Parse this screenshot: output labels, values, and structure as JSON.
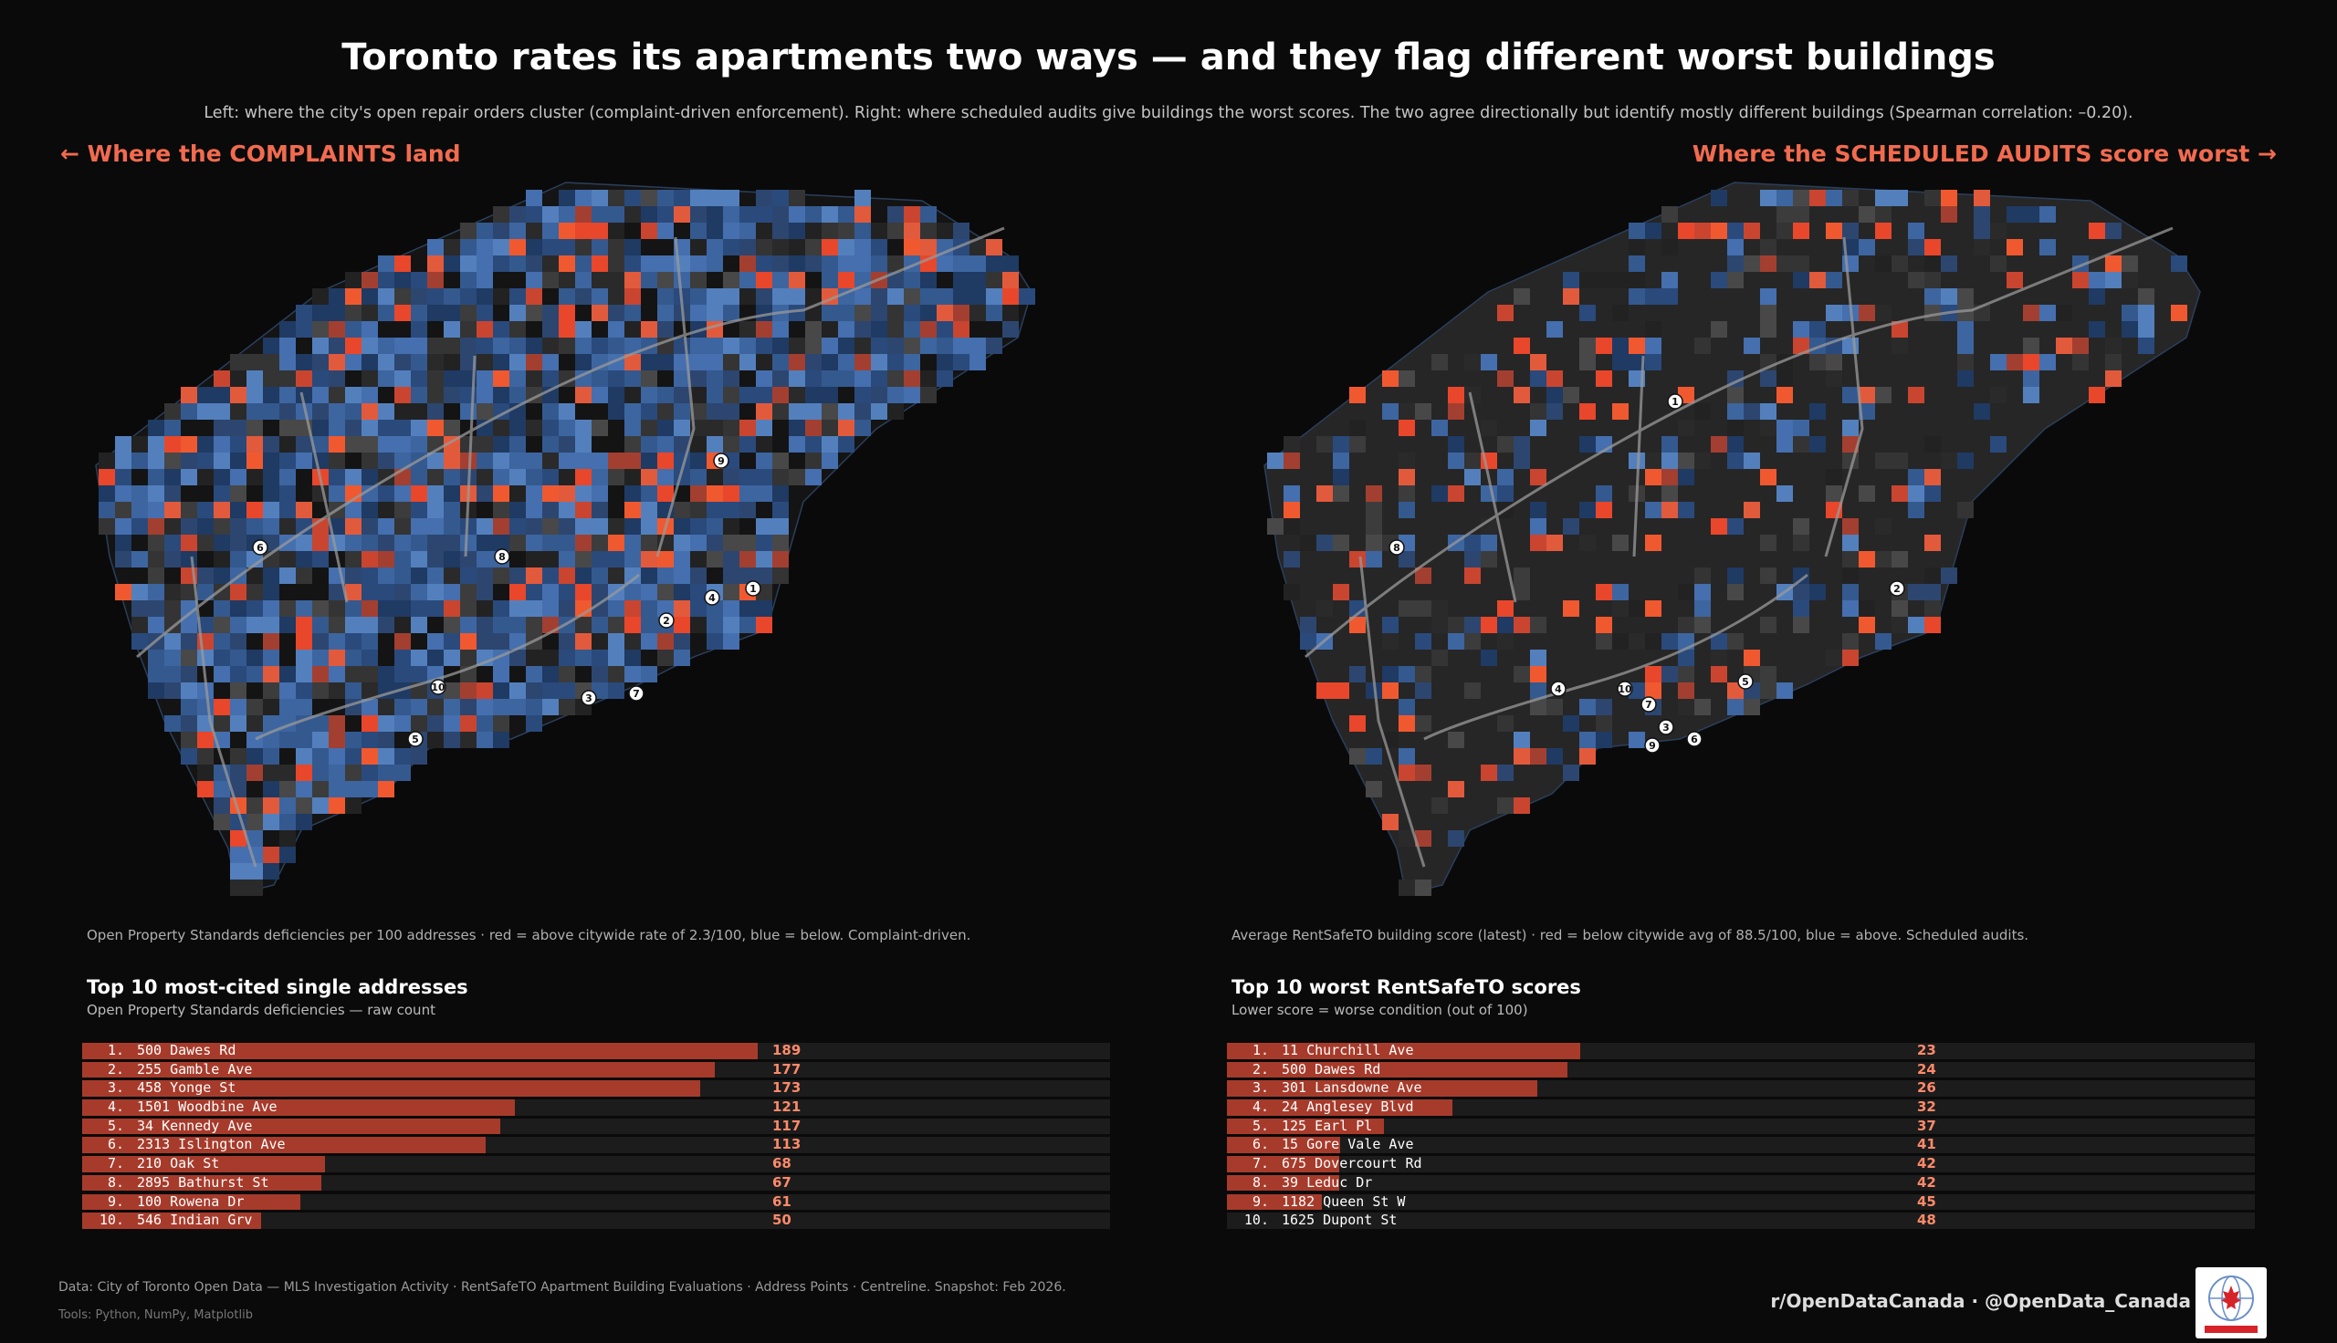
{
  "title": "Toronto rates its apartments two ways — and they flag different worst buildings",
  "subtitle": "Left: where the city's open repair orders cluster (complaint-driven enforcement).   Right: where scheduled audits give buildings the worst scores.   The two agree directionally but identify mostly different buildings (Spearman correlation: –0.20).",
  "left_label": "← Where the COMPLAINTS land",
  "right_label": "Where the SCHEDULED AUDITS score worst →",
  "colors": {
    "above": "#e8472b",
    "below": "#3a62a0",
    "background": "#0a0a0a",
    "bar": "#a73b2b",
    "value_text": "#ff8a6a"
  },
  "chart_data": [
    {
      "type": "heatmap",
      "name": "complaints-map",
      "caption": "Open Property Standards deficiencies per 100 addresses · red = above citywide rate of 2.3/100, blue = below.  Complaint-driven.",
      "reference_rate": 2.3,
      "markers": [
        "1",
        "2",
        "3",
        "4",
        "5",
        "6",
        "7",
        "8",
        "9",
        "10"
      ]
    },
    {
      "type": "heatmap",
      "name": "audits-map",
      "caption": "Average RentSafeTO building score (latest) · red = below citywide avg of 88.5/100, blue = above.  Scheduled audits.",
      "reference_rate": 88.5,
      "markers": [
        "1",
        "2",
        "3",
        "4",
        "5",
        "6",
        "7",
        "8",
        "9",
        "10"
      ]
    },
    {
      "type": "bar",
      "name": "complaints-top10",
      "title": "Top 10 most-cited single addresses",
      "subtitle": "Open Property Standards deficiencies — raw count",
      "max": 189,
      "items": [
        {
          "rank": "1.",
          "address": "500 Dawes Rd",
          "value": 189
        },
        {
          "rank": "2.",
          "address": "255 Gamble Ave",
          "value": 177
        },
        {
          "rank": "3.",
          "address": "458 Yonge St",
          "value": 173
        },
        {
          "rank": "4.",
          "address": "1501 Woodbine Ave",
          "value": 121
        },
        {
          "rank": "5.",
          "address": "34 Kennedy Ave",
          "value": 117
        },
        {
          "rank": "6.",
          "address": "2313 Islington Ave",
          "value": 113
        },
        {
          "rank": "7.",
          "address": "210 Oak St",
          "value": 68
        },
        {
          "rank": "8.",
          "address": "2895 Bathurst St",
          "value": 67
        },
        {
          "rank": "9.",
          "address": "100 Rowena Dr",
          "value": 61
        },
        {
          "rank": "10.",
          "address": "546 Indian Grv",
          "value": 50
        }
      ]
    },
    {
      "type": "bar",
      "name": "audits-worst10",
      "title": "Top 10 worst RentSafeTO scores",
      "subtitle": "Lower score = worse condition (out of 100)",
      "max": 100,
      "items": [
        {
          "rank": "1.",
          "address": "11 Churchill Ave",
          "value": 23
        },
        {
          "rank": "2.",
          "address": "500 Dawes Rd",
          "value": 24
        },
        {
          "rank": "3.",
          "address": "301 Lansdowne Ave",
          "value": 26
        },
        {
          "rank": "4.",
          "address": "24 Anglesey Blvd",
          "value": 32
        },
        {
          "rank": "5.",
          "address": "125 Earl Pl",
          "value": 37
        },
        {
          "rank": "6.",
          "address": "15 Gore Vale Ave",
          "value": 41
        },
        {
          "rank": "7.",
          "address": "675 Dovercourt Rd",
          "value": 42
        },
        {
          "rank": "8.",
          "address": "39 Leduc Dr",
          "value": 42
        },
        {
          "rank": "9.",
          "address": "1182 Queen St W",
          "value": 45
        },
        {
          "rank": "10.",
          "address": "1625 Dupont St",
          "value": 48
        }
      ]
    }
  ],
  "footer": {
    "data": "Data: City of Toronto Open Data — MLS Investigation Activity · RentSafeTO Apartment Building Evaluations · Address Points · Centreline.   Snapshot: Feb 2026.",
    "tools": "Tools: Python, NumPy, Matplotlib",
    "social": "r/OpenDataCanada  ·  @OpenData_Canada"
  }
}
